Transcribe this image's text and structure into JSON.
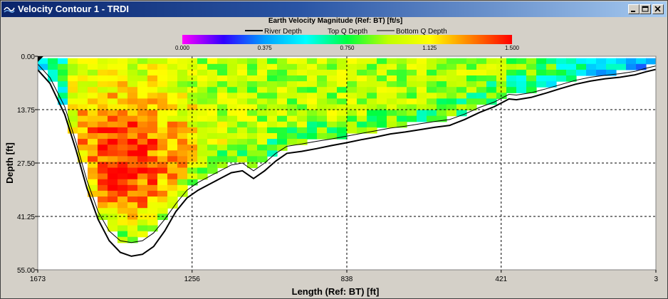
{
  "window": {
    "title": "Velocity Contour 1 - TRDI",
    "buttons": [
      "minimize",
      "maximize",
      "close"
    ]
  },
  "colors": {
    "title_bar_start": "#0a246a",
    "title_bar_end": "#a6caf0",
    "plot_background": "#ffffff",
    "frame_background": "#d4d0c8"
  },
  "chart_data": {
    "type": "heatmap",
    "title": "Earth Velocity Magnitude (Ref: BT) [ft/s]",
    "xlabel": "Length (Ref: BT) [ft]",
    "ylabel": "Depth [ft]",
    "x_ticks": [
      "1673",
      "1256",
      "838",
      "421",
      "3"
    ],
    "y_ticks": [
      "0.00",
      "13.75",
      "27.50",
      "41.25",
      "55.00"
    ],
    "xlim": [
      1673,
      3
    ],
    "ylim": [
      0,
      55
    ],
    "x_reversed": true,
    "y_reversed": true,
    "grid": true,
    "colorbar": {
      "min": 0,
      "max": 1.5,
      "ticks": [
        "0.000",
        "0.375",
        "0.750",
        "1.125",
        "1.500"
      ],
      "colormap": [
        "#ff00ff",
        "#3000ff",
        "#00a0ff",
        "#00ffff",
        "#00ff40",
        "#c0ff00",
        "#ffff00",
        "#ff8000",
        "#ff0000"
      ]
    },
    "legend": {
      "placement": "top-center",
      "entries": [
        "River Depth",
        "Top Q Depth",
        "Bottom Q Depth"
      ]
    },
    "series": [
      {
        "name": "River Depth",
        "x": [
          1673,
          1640,
          1600,
          1570,
          1540,
          1510,
          1480,
          1450,
          1420,
          1390,
          1360,
          1330,
          1300,
          1270,
          1240,
          1210,
          1180,
          1150,
          1120,
          1090,
          1060,
          1030,
          1000,
          960,
          920,
          880,
          840,
          800,
          760,
          720,
          680,
          640,
          600,
          560,
          520,
          480,
          440,
          420,
          400,
          380,
          340,
          300,
          260,
          220,
          180,
          140,
          100,
          60,
          30,
          3
        ],
        "y": [
          3.5,
          7.0,
          15.0,
          24.0,
          34.0,
          42.0,
          47.5,
          50.5,
          51.5,
          51.0,
          49.0,
          45.0,
          40.0,
          36.5,
          34.5,
          33.0,
          31.5,
          30.0,
          29.5,
          31.5,
          29.5,
          27.0,
          25.0,
          24.5,
          23.8,
          23.0,
          22.3,
          21.5,
          20.8,
          20.0,
          19.5,
          18.9,
          18.3,
          17.8,
          16.3,
          14.5,
          13.0,
          12.0,
          11.0,
          11.2,
          10.6,
          9.5,
          8.3,
          7.2,
          6.4,
          5.8,
          5.4,
          4.8,
          4.0,
          3.4
        ]
      },
      {
        "name": "Bottom Q Depth",
        "x": [
          1673,
          1640,
          1600,
          1570,
          1540,
          1510,
          1480,
          1450,
          1420,
          1390,
          1360,
          1330,
          1300,
          1270,
          1240,
          1210,
          1180,
          1150,
          1120,
          1090,
          1060,
          1030,
          1000,
          960,
          920,
          880,
          840,
          800,
          760,
          720,
          680,
          640,
          600,
          560,
          520,
          480,
          440,
          420,
          400,
          380,
          340,
          300,
          260,
          220,
          180,
          140,
          100,
          60,
          30,
          3
        ],
        "y": [
          2.0,
          5.5,
          13.0,
          22.0,
          32.0,
          40.0,
          45.0,
          47.5,
          48.0,
          47.5,
          45.5,
          42.0,
          38.0,
          34.5,
          32.5,
          31.0,
          29.5,
          28.0,
          27.5,
          29.5,
          27.5,
          25.0,
          23.2,
          22.6,
          21.9,
          21.3,
          20.6,
          19.9,
          19.2,
          18.5,
          18.0,
          17.4,
          16.8,
          16.3,
          14.9,
          13.2,
          11.8,
          10.8,
          9.8,
          10.0,
          9.4,
          8.4,
          7.3,
          6.2,
          5.4,
          4.9,
          4.5,
          3.9,
          3.1,
          2.5
        ]
      }
    ],
    "grid_values": {
      "x_start": 1673,
      "x_end": 3,
      "y_start": 0.5,
      "y_end": 48,
      "columns": 62,
      "rows": 32,
      "top_q_depth": 1.5,
      "core_x": 1440,
      "core_depth": 26,
      "core_speed": 1.45,
      "edge_speed": 0.35,
      "mean_speed": 0.95
    }
  }
}
